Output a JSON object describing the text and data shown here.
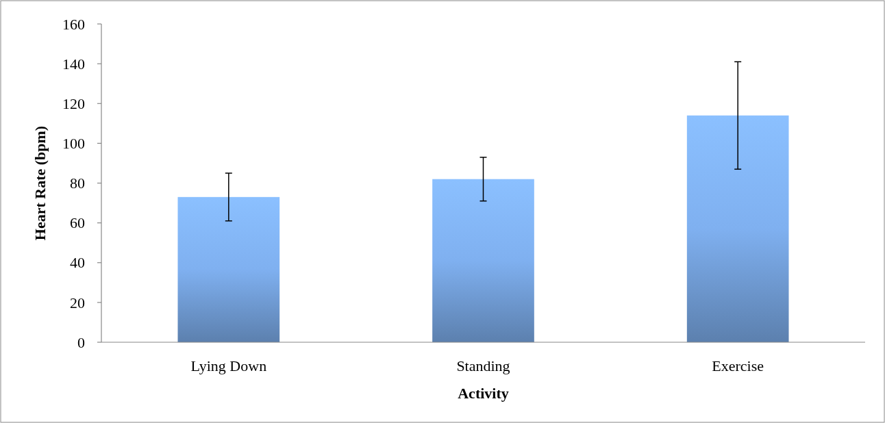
{
  "chart_data": {
    "type": "bar",
    "xlabel": "Activity",
    "ylabel": "Heart Rate (bpm)",
    "categories": [
      "Lying Down",
      "Standing",
      "Exercise"
    ],
    "values": [
      73,
      82,
      114
    ],
    "errors": [
      12,
      11,
      27
    ],
    "color": "#7fb0f0",
    "ylim": [
      0,
      160
    ],
    "yticks": [
      0,
      20,
      40,
      60,
      80,
      100,
      120,
      140,
      160
    ],
    "grid": false
  }
}
